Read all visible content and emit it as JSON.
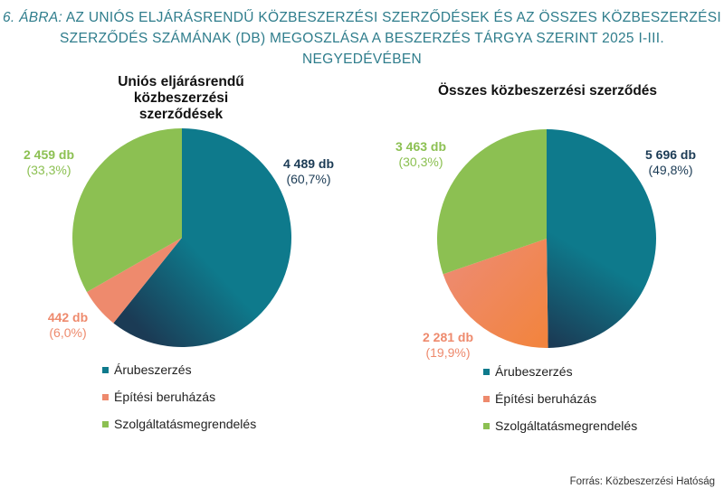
{
  "figure": {
    "label": "6. ÁBRA:",
    "title_line1": "AZ UNIÓS ELJÁRÁSRENDŰ KÖZBESZERZÉSI SZERZŐDÉSEK ÉS AZ ÖSSZES KÖZBESZERZÉSI",
    "title_line2": "SZERZŐDÉS SZÁMÁNAK (DB) MEGOSZLÁSA A BESZERZÉS TÁRGYA SZERINT 2025 I-III. NEGYEDÉVÉBEN"
  },
  "colors": {
    "title": "#2f7d8c",
    "arubeszerzes": "#0e7a8c",
    "arubeszerzes_dark": "#1b3b55",
    "epitesi": "#ee8a6d",
    "epitesi_dark": "#f2843d",
    "szolgaltatas": "#8cc052",
    "label_dark": "#1b3b55"
  },
  "chart_data": [
    {
      "type": "pie",
      "title": "Uniós eljárásrendű közbeszerzési szerződések",
      "title_line1": "Uniós eljárásrendű",
      "title_line2": "közbeszerzési szerződések",
      "categories": [
        "Árubeszerzés",
        "Építési beruházás",
        "Szolgáltatásmegrendelés"
      ],
      "values": [
        4489,
        442,
        2459
      ],
      "percents": [
        60.7,
        6.0,
        33.3
      ],
      "value_labels": [
        "4 489 db",
        "442 db",
        "2 459 db"
      ],
      "percent_labels": [
        "(60,7%)",
        "(6,0%)",
        "(33,3%)"
      ],
      "legend": "bottom"
    },
    {
      "type": "pie",
      "title": "Összes közbeszerzési szerződés",
      "categories": [
        "Árubeszerzés",
        "Építési beruházás",
        "Szolgáltatásmegrendelés"
      ],
      "values": [
        5696,
        2281,
        3463
      ],
      "percents": [
        49.8,
        19.9,
        30.3
      ],
      "value_labels": [
        "5 696 db",
        "2 281 db",
        "3 463 db"
      ],
      "percent_labels": [
        "(49,8%)",
        "(19,9%)",
        "(30,3%)"
      ],
      "legend": "bottom"
    }
  ],
  "source": "Forrás: Közbeszerzési Hatóság"
}
